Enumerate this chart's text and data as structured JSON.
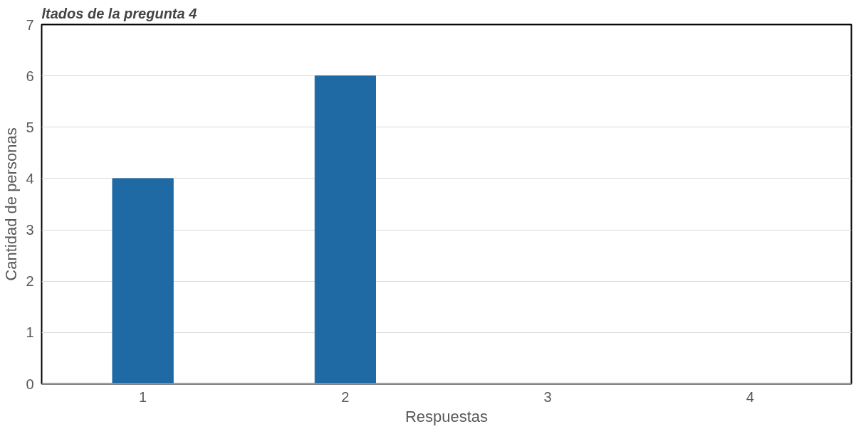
{
  "chart_data": {
    "type": "bar",
    "title": "ltados de la pregunta 4",
    "categories": [
      "1",
      "2",
      "3",
      "4"
    ],
    "values": [
      4,
      6,
      0,
      0
    ],
    "color": "#1f6aa5",
    "xlabel": "Respuestas",
    "ylabel": "Cantidad de personas",
    "ylim": [
      0,
      7
    ],
    "yticks": [
      0,
      1,
      2,
      3,
      4,
      5,
      6,
      7
    ],
    "grid": "y"
  }
}
